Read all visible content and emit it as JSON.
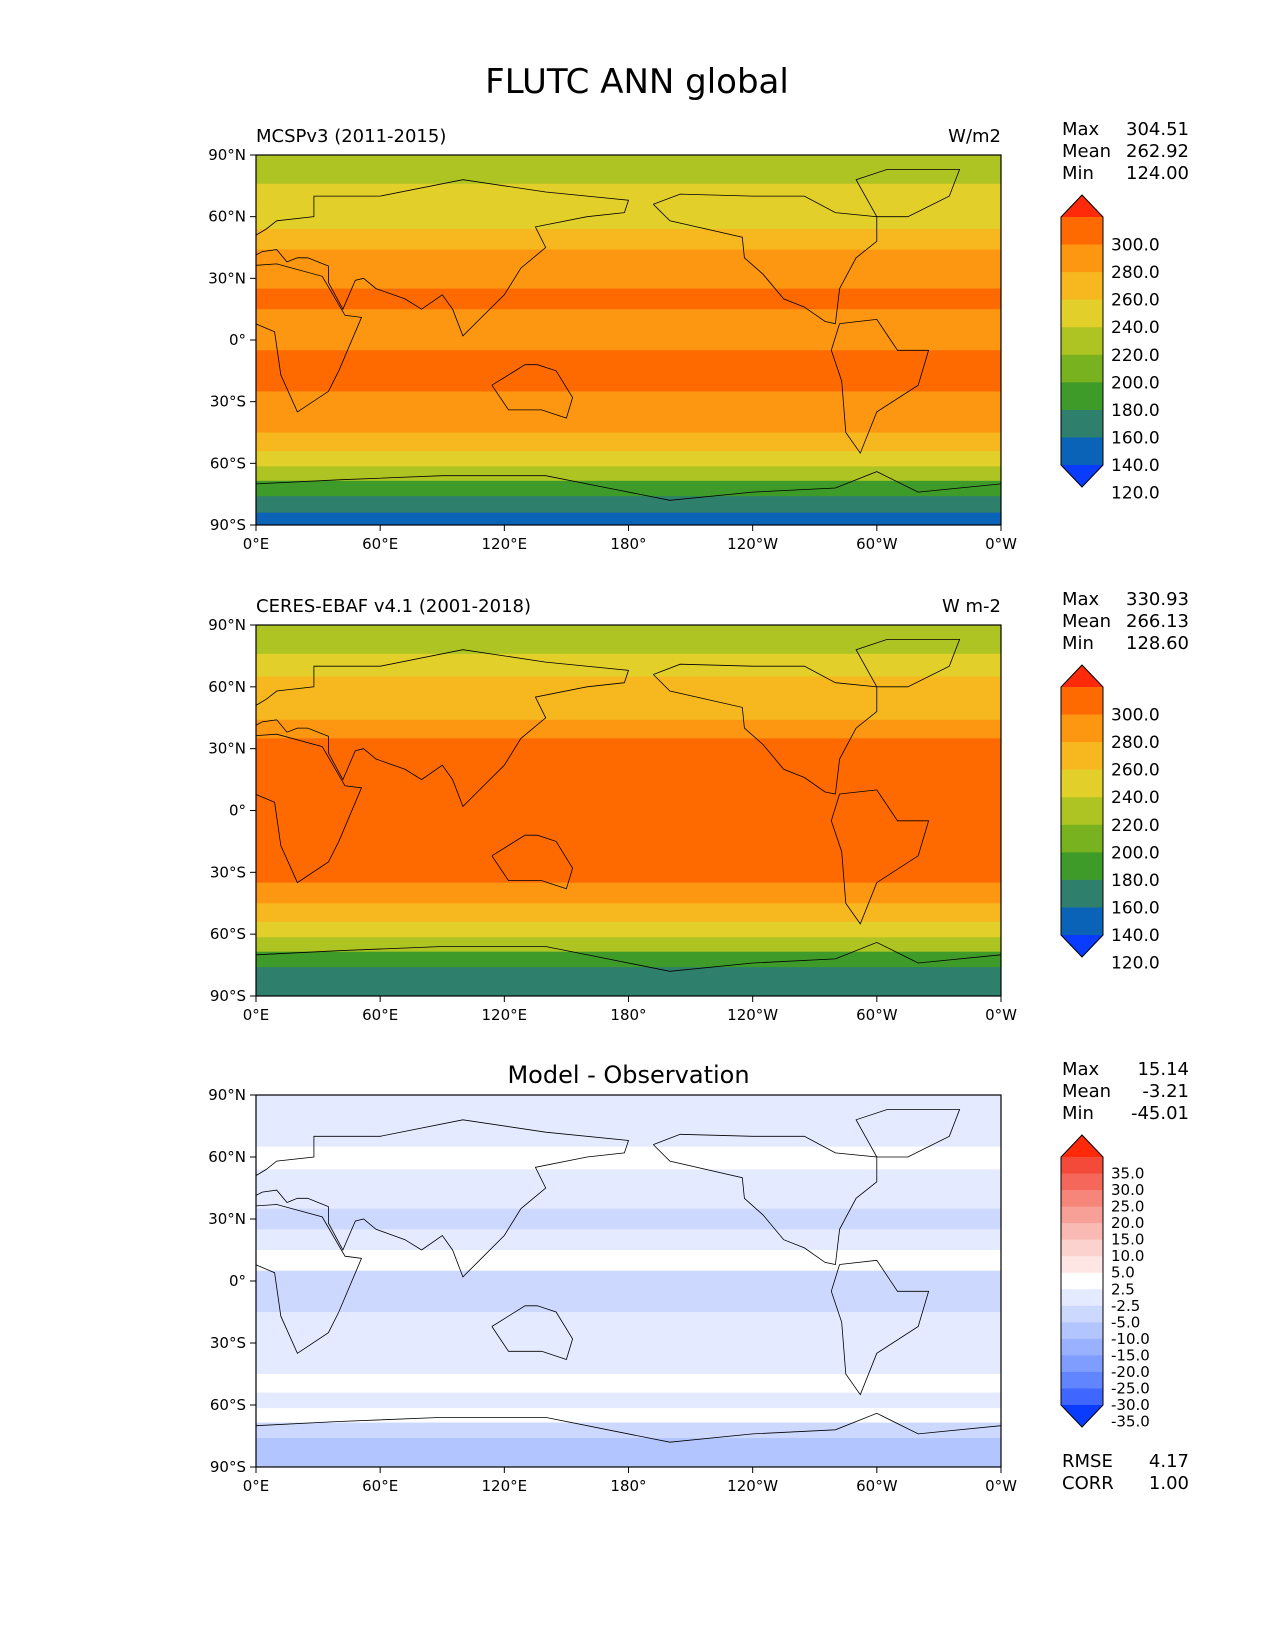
{
  "figure": {
    "title": "FLUTC ANN global"
  },
  "chart_data": [
    {
      "type": "heatmap",
      "title": "MCSPv3 (2011-2015)",
      "units": "W/m2",
      "stats": [
        {
          "label": "Max",
          "value": "304.51"
        },
        {
          "label": "Mean",
          "value": "262.92"
        },
        {
          "label": "Min",
          "value": "124.00"
        }
      ],
      "x_ticks": [
        "0°E",
        "60°E",
        "120°E",
        "180°",
        "120°W",
        "60°W",
        "0°W"
      ],
      "y_ticks": [
        "90°N",
        "60°N",
        "30°N",
        "0°",
        "30°S",
        "60°S",
        "90°S"
      ],
      "xlim": [
        0,
        360
      ],
      "ylim": [
        -90,
        90
      ],
      "colorbar": {
        "levels": [
          "300.0",
          "280.0",
          "260.0",
          "240.0",
          "220.0",
          "200.0",
          "180.0",
          "160.0",
          "140.0",
          "120.0"
        ],
        "colors": [
          "#ff2a0a",
          "#ff6a00",
          "#fd9610",
          "#f6b81e",
          "#e2cf2a",
          "#aec423",
          "#79b21f",
          "#3e9b2a",
          "#2e7f6b",
          "#0b63b8",
          "#0a3cff"
        ]
      },
      "lat_band_values": [
        {
          "lat": 82,
          "value": 205
        },
        {
          "lat": 70,
          "value": 222
        },
        {
          "lat": 60,
          "value": 238
        },
        {
          "lat": 48,
          "value": 252
        },
        {
          "lat": 40,
          "value": 262
        },
        {
          "lat": 30,
          "value": 278
        },
        {
          "lat": 20,
          "value": 282
        },
        {
          "lat": 10,
          "value": 275
        },
        {
          "lat": 0,
          "value": 272
        },
        {
          "lat": -10,
          "value": 280
        },
        {
          "lat": -20,
          "value": 284
        },
        {
          "lat": -30,
          "value": 278
        },
        {
          "lat": -40,
          "value": 262
        },
        {
          "lat": -50,
          "value": 245
        },
        {
          "lat": -58,
          "value": 228
        },
        {
          "lat": -65,
          "value": 212
        },
        {
          "lat": -72,
          "value": 178
        },
        {
          "lat": -80,
          "value": 140
        },
        {
          "lat": -88,
          "value": 132
        }
      ]
    },
    {
      "type": "heatmap",
      "title": "CERES-EBAF v4.1 (2001-2018)",
      "units": "W m-2",
      "stats": [
        {
          "label": "Max",
          "value": "330.93"
        },
        {
          "label": "Mean",
          "value": "266.13"
        },
        {
          "label": "Min",
          "value": "128.60"
        }
      ],
      "x_ticks": [
        "0°E",
        "60°E",
        "120°E",
        "180°",
        "120°W",
        "60°W",
        "0°W"
      ],
      "y_ticks": [
        "90°N",
        "60°N",
        "30°N",
        "0°",
        "30°S",
        "60°S",
        "90°S"
      ],
      "xlim": [
        0,
        360
      ],
      "ylim": [
        -90,
        90
      ],
      "colorbar": {
        "levels": [
          "300.0",
          "280.0",
          "260.0",
          "240.0",
          "220.0",
          "200.0",
          "180.0",
          "160.0",
          "140.0",
          "120.0"
        ],
        "colors": [
          "#ff2a0a",
          "#ff6a00",
          "#fd9610",
          "#f6b81e",
          "#e2cf2a",
          "#aec423",
          "#79b21f",
          "#3e9b2a",
          "#2e7f6b",
          "#0b63b8",
          "#0a3cff"
        ]
      },
      "lat_band_values": [
        {
          "lat": 82,
          "value": 210
        },
        {
          "lat": 70,
          "value": 228
        },
        {
          "lat": 60,
          "value": 240
        },
        {
          "lat": 48,
          "value": 255
        },
        {
          "lat": 40,
          "value": 266
        },
        {
          "lat": 30,
          "value": 282
        },
        {
          "lat": 20,
          "value": 285
        },
        {
          "lat": 10,
          "value": 280
        },
        {
          "lat": 0,
          "value": 284
        },
        {
          "lat": -10,
          "value": 286
        },
        {
          "lat": -20,
          "value": 286
        },
        {
          "lat": -30,
          "value": 280
        },
        {
          "lat": -40,
          "value": 264
        },
        {
          "lat": -50,
          "value": 246
        },
        {
          "lat": -58,
          "value": 230
        },
        {
          "lat": -65,
          "value": 214
        },
        {
          "lat": -72,
          "value": 172
        },
        {
          "lat": -80,
          "value": 150
        },
        {
          "lat": -88,
          "value": 148
        }
      ]
    },
    {
      "type": "heatmap",
      "title": "Model - Observation",
      "units": "",
      "stats": [
        {
          "label": "Max",
          "value": "15.14"
        },
        {
          "label": "Mean",
          "value": "-3.21"
        },
        {
          "label": "Min",
          "value": "-45.01"
        }
      ],
      "extra_stats": [
        {
          "label": "RMSE",
          "value": "4.17"
        },
        {
          "label": "CORR",
          "value": "1.00"
        }
      ],
      "x_ticks": [
        "0°E",
        "60°E",
        "120°E",
        "180°",
        "120°W",
        "60°W",
        "0°W"
      ],
      "y_ticks": [
        "90°N",
        "60°N",
        "30°N",
        "0°",
        "30°S",
        "60°S",
        "90°S"
      ],
      "xlim": [
        0,
        360
      ],
      "ylim": [
        -90,
        90
      ],
      "colorbar": {
        "levels": [
          "35.0",
          "30.0",
          "25.0",
          "20.0",
          "15.0",
          "10.0",
          "5.0",
          "2.5",
          "-2.5",
          "-5.0",
          "-10.0",
          "-15.0",
          "-20.0",
          "-25.0",
          "-30.0",
          "-35.0"
        ],
        "colors": [
          "#ff2a0a",
          "#f34a3a",
          "#f4675a",
          "#f6857a",
          "#f7a098",
          "#f9bab3",
          "#fbd2cd",
          "#fde6e3",
          "#ffffff",
          "#e4eaff",
          "#cdd8ff",
          "#b3c5ff",
          "#99b1ff",
          "#7f9cff",
          "#6185ff",
          "#3f67ff",
          "#0a3cff"
        ]
      },
      "lat_band_values": [
        {
          "lat": 82,
          "value": -3
        },
        {
          "lat": 70,
          "value": -4
        },
        {
          "lat": 60,
          "value": -2
        },
        {
          "lat": 48,
          "value": -3
        },
        {
          "lat": 40,
          "value": -4
        },
        {
          "lat": 30,
          "value": -6
        },
        {
          "lat": 20,
          "value": -4
        },
        {
          "lat": 10,
          "value": -1
        },
        {
          "lat": 0,
          "value": -8
        },
        {
          "lat": -10,
          "value": -6
        },
        {
          "lat": -20,
          "value": -3
        },
        {
          "lat": -30,
          "value": -4
        },
        {
          "lat": -40,
          "value": -3
        },
        {
          "lat": -50,
          "value": -2
        },
        {
          "lat": -58,
          "value": -4
        },
        {
          "lat": -65,
          "value": -1
        },
        {
          "lat": -72,
          "value": -6
        },
        {
          "lat": -80,
          "value": -11
        },
        {
          "lat": -88,
          "value": -12
        }
      ]
    }
  ]
}
